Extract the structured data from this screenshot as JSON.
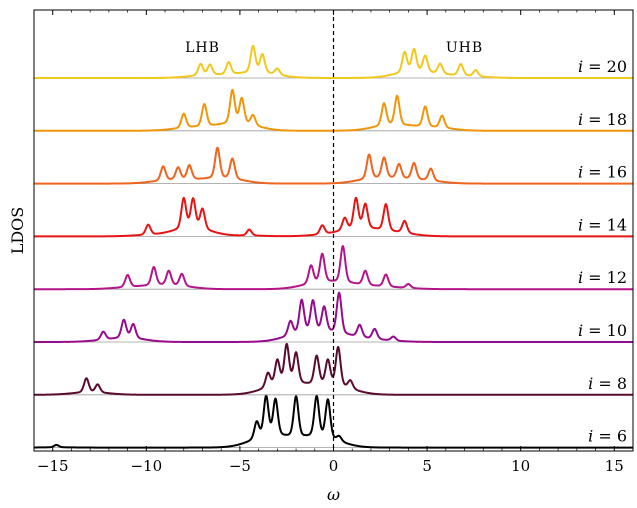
{
  "chart_data": {
    "type": "line",
    "title": "",
    "xlabel": "ω",
    "ylabel": "LDOS",
    "xlim": [
      -16,
      16
    ],
    "x_ticks": [
      -15,
      -10,
      -5,
      0,
      5,
      10,
      15
    ],
    "x_tick_labels": [
      "−15",
      "−10",
      "−5",
      "0",
      "5",
      "10",
      "15"
    ],
    "grid": false,
    "legend": "none (series labelled at right inside plot)",
    "vertical_reference_line": {
      "x": 0,
      "style": "dashed"
    },
    "annotations": [
      {
        "text": "LHB",
        "x": -7.0,
        "series": "i = 20"
      },
      {
        "text": "UHB",
        "x": 7.0,
        "series": "i = 20"
      }
    ],
    "series": [
      {
        "name": "i = 6",
        "label": "i = 6",
        "color": "#000000",
        "peaks": [
          [
            -14.8,
            0.06
          ],
          [
            -4.1,
            0.42
          ],
          [
            -3.6,
            1.0
          ],
          [
            -3.1,
            0.9
          ],
          [
            -2.0,
            1.0
          ],
          [
            -0.9,
            1.0
          ],
          [
            -0.3,
            0.95
          ],
          [
            0.3,
            0.12
          ]
        ]
      },
      {
        "name": "i = 8",
        "label": "i = 8",
        "color": "#5a0a2e",
        "peaks": [
          [
            -13.2,
            0.35
          ],
          [
            -12.6,
            0.2
          ],
          [
            -3.5,
            0.35
          ],
          [
            -3.0,
            0.6
          ],
          [
            -2.5,
            0.95
          ],
          [
            -2.0,
            0.75
          ],
          [
            -0.9,
            0.7
          ],
          [
            -0.3,
            0.6
          ],
          [
            0.25,
            0.95
          ],
          [
            0.9,
            0.2
          ]
        ]
      },
      {
        "name": "i = 10",
        "label": "i = 10",
        "color": "#960a8c",
        "peaks": [
          [
            -12.3,
            0.2
          ],
          [
            -11.2,
            0.45
          ],
          [
            -10.7,
            0.35
          ],
          [
            -2.3,
            0.35
          ],
          [
            -1.7,
            0.8
          ],
          [
            -1.1,
            0.75
          ],
          [
            -0.5,
            0.6
          ],
          [
            0.3,
            1.0
          ],
          [
            1.4,
            0.3
          ],
          [
            2.2,
            0.25
          ],
          [
            3.2,
            0.1
          ]
        ]
      },
      {
        "name": "i = 12",
        "label": "i = 12",
        "color": "#b4148a",
        "peaks": [
          [
            -11.0,
            0.3
          ],
          [
            -9.6,
            0.45
          ],
          [
            -8.8,
            0.35
          ],
          [
            -8.1,
            0.3
          ],
          [
            -1.2,
            0.45
          ],
          [
            -0.6,
            0.7
          ],
          [
            0.5,
            0.9
          ],
          [
            1.7,
            0.35
          ],
          [
            2.8,
            0.3
          ],
          [
            4.0,
            0.1
          ]
        ]
      },
      {
        "name": "i = 14",
        "label": "i = 14",
        "color": "#e61414",
        "peaks": [
          [
            -9.9,
            0.25
          ],
          [
            -8.0,
            0.75
          ],
          [
            -7.5,
            0.72
          ],
          [
            -7.0,
            0.5
          ],
          [
            -4.5,
            0.15
          ],
          [
            -0.6,
            0.22
          ],
          [
            0.6,
            0.3
          ],
          [
            1.2,
            0.75
          ],
          [
            1.7,
            0.6
          ],
          [
            2.8,
            0.65
          ],
          [
            3.8,
            0.3
          ]
        ]
      },
      {
        "name": "i = 16",
        "label": "i = 16",
        "color": "#f0641e",
        "peaks": [
          [
            -9.1,
            0.35
          ],
          [
            -8.3,
            0.3
          ],
          [
            -7.7,
            0.35
          ],
          [
            -6.2,
            0.75
          ],
          [
            -5.4,
            0.5
          ],
          [
            1.9,
            0.6
          ],
          [
            2.7,
            0.5
          ],
          [
            3.5,
            0.35
          ],
          [
            4.3,
            0.4
          ],
          [
            5.2,
            0.3
          ]
        ]
      },
      {
        "name": "i = 18",
        "label": "i = 18",
        "color": "#f0960a",
        "peaks": [
          [
            -8.0,
            0.35
          ],
          [
            -6.9,
            0.55
          ],
          [
            -5.4,
            0.82
          ],
          [
            -4.9,
            0.62
          ],
          [
            -4.3,
            0.25
          ],
          [
            2.7,
            0.55
          ],
          [
            3.4,
            0.72
          ],
          [
            4.9,
            0.5
          ],
          [
            5.8,
            0.3
          ]
        ]
      },
      {
        "name": "i = 20",
        "label": "i = 20",
        "color": "#f0c81e",
        "peaks": [
          [
            -7.1,
            0.28
          ],
          [
            -6.6,
            0.25
          ],
          [
            -5.6,
            0.3
          ],
          [
            -4.3,
            0.65
          ],
          [
            -3.8,
            0.45
          ],
          [
            -3.0,
            0.15
          ],
          [
            3.8,
            0.5
          ],
          [
            4.3,
            0.55
          ],
          [
            4.9,
            0.4
          ],
          [
            5.7,
            0.25
          ],
          [
            6.8,
            0.28
          ],
          [
            7.6,
            0.15
          ]
        ]
      }
    ]
  }
}
